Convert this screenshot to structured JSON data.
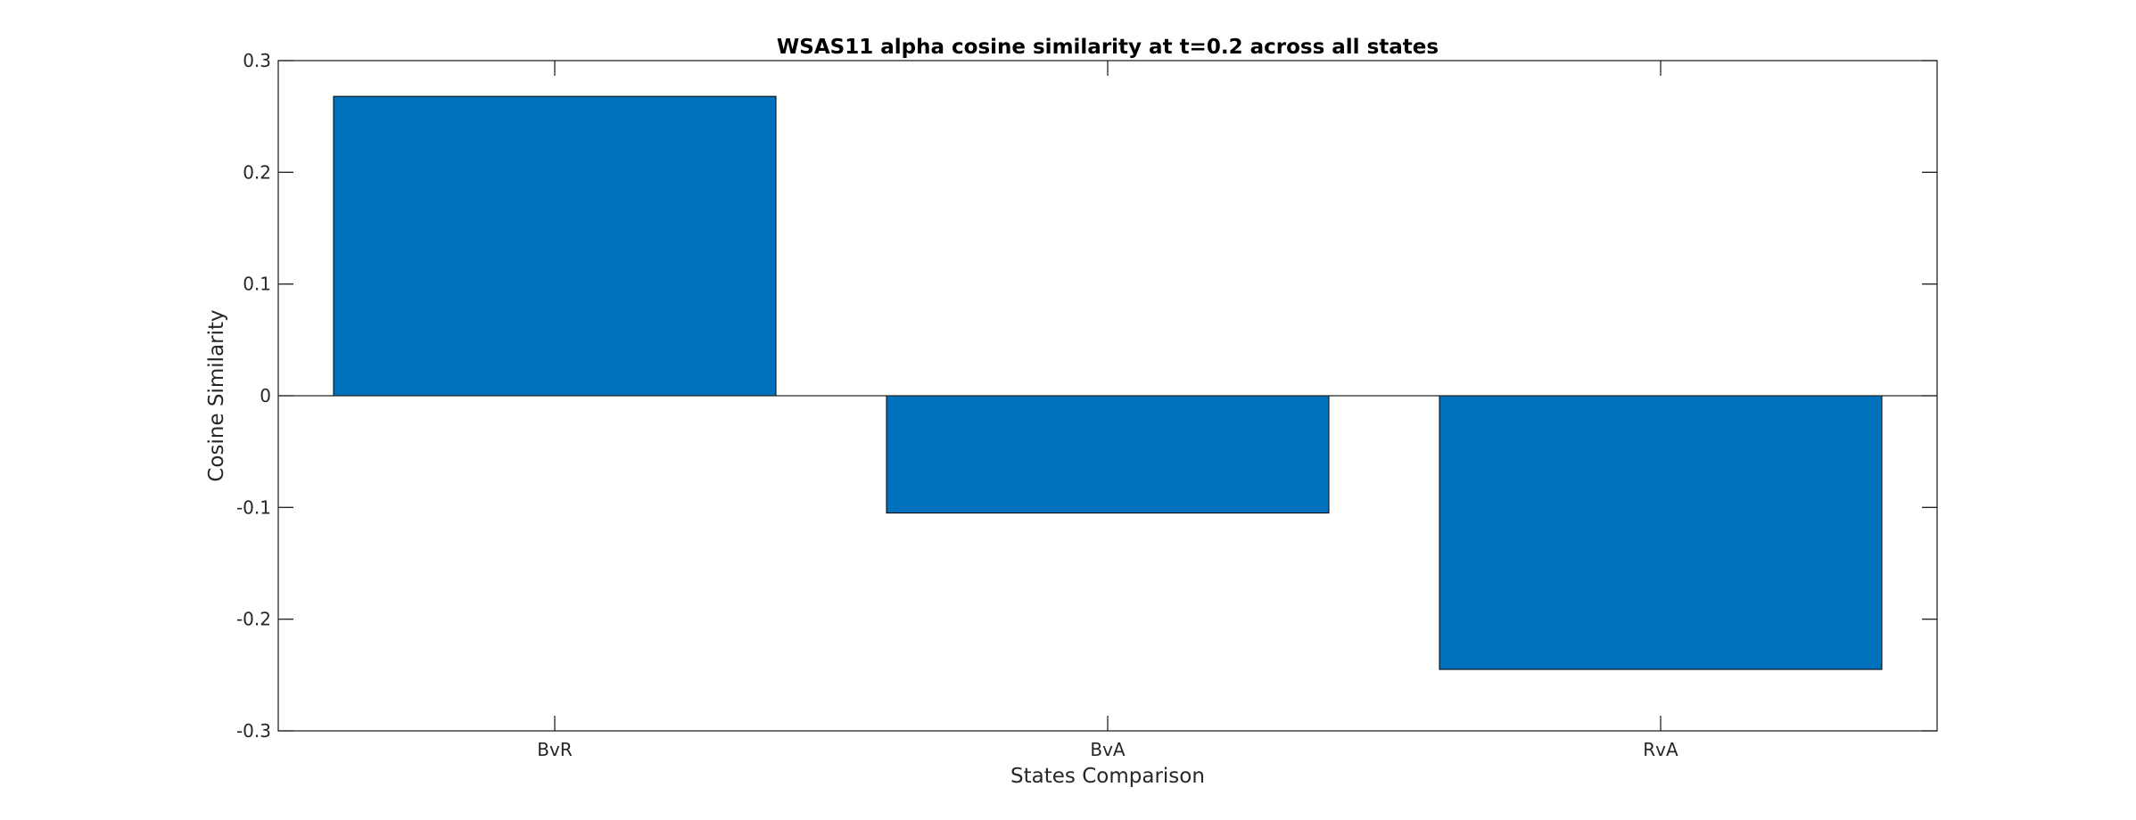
{
  "chart_data": {
    "type": "bar",
    "title": "WSAS11 alpha cosine similarity at t=0.2 across all states",
    "xlabel": "States Comparison",
    "ylabel": "Cosine Similarity",
    "categories": [
      "BvR",
      "BvA",
      "RvA"
    ],
    "values": [
      0.268,
      -0.105,
      -0.245
    ],
    "ylim": [
      -0.3,
      0.3
    ],
    "yticks": [
      -0.3,
      -0.2,
      -0.1,
      0,
      0.1,
      0.2,
      0.3
    ],
    "ytick_labels": [
      "-0.3",
      "-0.2",
      "-0.1",
      "0",
      "0.1",
      "0.2",
      "0.3"
    ],
    "grid": false,
    "bar_color": "#0072BD",
    "baseline": 0
  }
}
